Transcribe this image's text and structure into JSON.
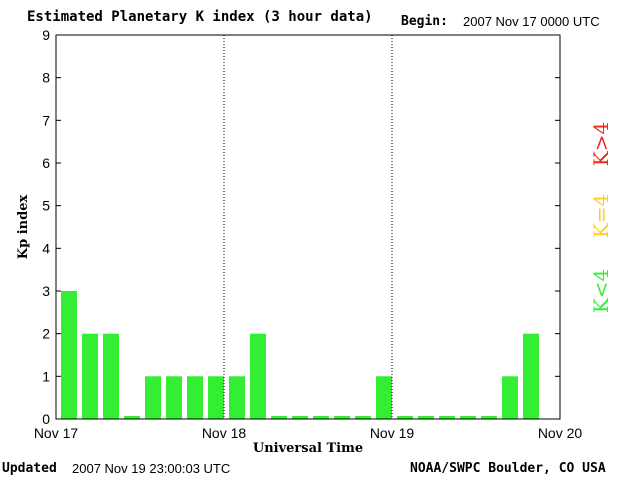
{
  "header": {
    "title": "Estimated Planetary K index (3 hour data)",
    "begin_label": "Begin:",
    "begin_value": "2007 Nov 17 0000 UTC"
  },
  "footer": {
    "updated_label": "Updated",
    "updated_value": "2007 Nov 19 23:00:03 UTC",
    "credit": "NOAA/SWPC Boulder, CO USA"
  },
  "chart_data": {
    "type": "bar",
    "title": "Estimated Planetary K index (3 hour data)",
    "xlabel": "Universal Time",
    "ylabel": "Kp index",
    "ylim": [
      0,
      9
    ],
    "yticks": [
      0,
      1,
      2,
      3,
      4,
      5,
      6,
      7,
      8,
      9
    ],
    "x_ticks": [
      "Nov 17",
      "Nov 18",
      "Nov 19",
      "Nov 20"
    ],
    "day_dividers": [
      "Nov 18",
      "Nov 19"
    ],
    "interval": "3 hour",
    "values": [
      3,
      2,
      2,
      0,
      1,
      1,
      1,
      1,
      1,
      2,
      0,
      0,
      0,
      0,
      0,
      1,
      0,
      0,
      0,
      0,
      0,
      1,
      2
    ],
    "grid": false,
    "legend_position": "right",
    "legend": [
      {
        "label": "K<4",
        "color": "#33ee33"
      },
      {
        "label": "K=4",
        "color": "#ffcc22"
      },
      {
        "label": "K>4",
        "color": "#ee2a1a"
      }
    ],
    "colors": {
      "low": "#33ee33",
      "equal": "#ffcc22",
      "high": "#ee2a1a"
    }
  }
}
